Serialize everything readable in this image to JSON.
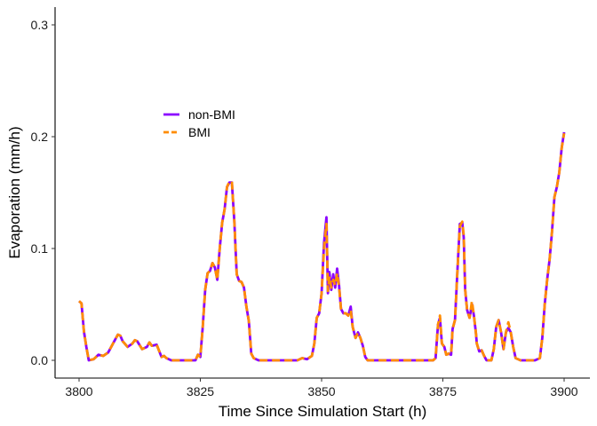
{
  "chart_data": {
    "type": "line",
    "title": "",
    "xlabel": "Time Since Simulation Start (h)",
    "ylabel": "Evaporation (mm/h)",
    "xlim": [
      3800,
      3900
    ],
    "ylim": [
      0,
      0.3
    ],
    "x_ticks": [
      3800,
      3825,
      3850,
      3875,
      3900
    ],
    "y_ticks": [
      0.0,
      0.1,
      0.2,
      0.3
    ],
    "x_tick_labels": [
      "3800",
      "3825",
      "3850",
      "3875",
      "3900"
    ],
    "y_tick_labels": [
      "0.0",
      "0.1",
      "0.2",
      "0.3"
    ],
    "grid": false,
    "legend_position": "upper-left",
    "series": [
      {
        "name": "non-BMI",
        "color": "#8B00FF",
        "dash": "solid",
        "points": [
          [
            3800,
            0.053
          ],
          [
            3800.5,
            0.051
          ],
          [
            3801,
            0.026
          ],
          [
            3801.5,
            0.012
          ],
          [
            3802,
            0.0
          ],
          [
            3803,
            0.001
          ],
          [
            3804,
            0.005
          ],
          [
            3805,
            0.004
          ],
          [
            3806,
            0.007
          ],
          [
            3807,
            0.015
          ],
          [
            3808,
            0.023
          ],
          [
            3808.5,
            0.022
          ],
          [
            3809,
            0.017
          ],
          [
            3810,
            0.012
          ],
          [
            3811,
            0.015
          ],
          [
            3811.5,
            0.018
          ],
          [
            3812,
            0.017
          ],
          [
            3813,
            0.01
          ],
          [
            3814,
            0.012
          ],
          [
            3814.5,
            0.016
          ],
          [
            3815,
            0.013
          ],
          [
            3816,
            0.014
          ],
          [
            3817,
            0.003
          ],
          [
            3817.5,
            0.004
          ],
          [
            3818,
            0.002
          ],
          [
            3819,
            0.0
          ],
          [
            3820,
            0.0
          ],
          [
            3821,
            0.0
          ],
          [
            3822,
            0.0
          ],
          [
            3823,
            0.0
          ],
          [
            3824,
            0.0
          ],
          [
            3824.5,
            0.005
          ],
          [
            3825,
            0.003
          ],
          [
            3825.5,
            0.03
          ],
          [
            3826,
            0.063
          ],
          [
            3826.5,
            0.078
          ],
          [
            3827,
            0.08
          ],
          [
            3827.5,
            0.087
          ],
          [
            3828,
            0.083
          ],
          [
            3828.5,
            0.072
          ],
          [
            3829,
            0.1
          ],
          [
            3829.5,
            0.123
          ],
          [
            3830,
            0.135
          ],
          [
            3830.5,
            0.155
          ],
          [
            3831,
            0.159
          ],
          [
            3831.5,
            0.159
          ],
          [
            3832,
            0.125
          ],
          [
            3832.5,
            0.077
          ],
          [
            3833,
            0.071
          ],
          [
            3833.5,
            0.07
          ],
          [
            3834,
            0.065
          ],
          [
            3834.5,
            0.048
          ],
          [
            3835,
            0.035
          ],
          [
            3835.5,
            0.006
          ],
          [
            3836,
            0.002
          ],
          [
            3837,
            0.0
          ],
          [
            3838,
            0.0
          ],
          [
            3839,
            0.0
          ],
          [
            3840,
            0.0
          ],
          [
            3841,
            0.0
          ],
          [
            3842,
            0.0
          ],
          [
            3843,
            0.0
          ],
          [
            3844,
            0.0
          ],
          [
            3845,
            0.0
          ],
          [
            3846,
            0.002
          ],
          [
            3847,
            0.001
          ],
          [
            3848,
            0.004
          ],
          [
            3848.5,
            0.015
          ],
          [
            3849,
            0.038
          ],
          [
            3849.5,
            0.042
          ],
          [
            3850,
            0.06
          ],
          [
            3850.5,
            0.105
          ],
          [
            3851,
            0.128
          ],
          [
            3851.3,
            0.06
          ],
          [
            3851.6,
            0.079
          ],
          [
            3852,
            0.063
          ],
          [
            3852.4,
            0.077
          ],
          [
            3852.8,
            0.065
          ],
          [
            3853.2,
            0.082
          ],
          [
            3853.6,
            0.067
          ],
          [
            3854,
            0.046
          ],
          [
            3854.5,
            0.042
          ],
          [
            3855,
            0.042
          ],
          [
            3855.5,
            0.04
          ],
          [
            3856,
            0.048
          ],
          [
            3856.4,
            0.03
          ],
          [
            3857,
            0.02
          ],
          [
            3857.5,
            0.025
          ],
          [
            3858,
            0.02
          ],
          [
            3858.5,
            0.013
          ],
          [
            3859,
            0.003
          ],
          [
            3859.5,
            0.0
          ],
          [
            3860,
            0.0
          ],
          [
            3862,
            0.0
          ],
          [
            3864,
            0.0
          ],
          [
            3866,
            0.0
          ],
          [
            3868,
            0.0
          ],
          [
            3870,
            0.0
          ],
          [
            3872,
            0.0
          ],
          [
            3873,
            0.0
          ],
          [
            3873.5,
            0.002
          ],
          [
            3874,
            0.032
          ],
          [
            3874.4,
            0.038
          ],
          [
            3874.8,
            0.015
          ],
          [
            3875.3,
            0.012
          ],
          [
            3875.7,
            0.005
          ],
          [
            3876.2,
            0.006
          ],
          [
            3876.7,
            0.005
          ],
          [
            3877,
            0.028
          ],
          [
            3877.5,
            0.036
          ],
          [
            3878,
            0.08
          ],
          [
            3878.5,
            0.122
          ],
          [
            3879,
            0.123
          ],
          [
            3879.3,
            0.11
          ],
          [
            3879.6,
            0.063
          ],
          [
            3880,
            0.045
          ],
          [
            3880.5,
            0.038
          ],
          [
            3881,
            0.05
          ],
          [
            3881.4,
            0.04
          ],
          [
            3881.8,
            0.025
          ],
          [
            3882,
            0.015
          ],
          [
            3882.5,
            0.008
          ],
          [
            3883,
            0.009
          ],
          [
            3883.5,
            0.004
          ],
          [
            3884,
            0.0
          ],
          [
            3885,
            0.0
          ],
          [
            3885.5,
            0.01
          ],
          [
            3886,
            0.03
          ],
          [
            3886.5,
            0.036
          ],
          [
            3887,
            0.025
          ],
          [
            3887.5,
            0.01
          ],
          [
            3888,
            0.025
          ],
          [
            3888.5,
            0.029
          ],
          [
            3889,
            0.025
          ],
          [
            3889.5,
            0.012
          ],
          [
            3890,
            0.002
          ],
          [
            3891,
            0.0
          ],
          [
            3892,
            0.0
          ],
          [
            3893,
            0.0
          ],
          [
            3894,
            0.0
          ],
          [
            3895,
            0.002
          ],
          [
            3895.5,
            0.02
          ],
          [
            3896,
            0.05
          ],
          [
            3896.5,
            0.072
          ],
          [
            3897,
            0.09
          ],
          [
            3897.5,
            0.115
          ],
          [
            3898,
            0.146
          ],
          [
            3898.5,
            0.155
          ],
          [
            3899,
            0.168
          ],
          [
            3899.5,
            0.19
          ],
          [
            3900,
            0.204
          ]
        ]
      },
      {
        "name": "BMI",
        "color": "#FF8C00",
        "dash": "dashed",
        "points": [
          [
            3800,
            0.053
          ],
          [
            3800.5,
            0.051
          ],
          [
            3801,
            0.026
          ],
          [
            3801.5,
            0.012
          ],
          [
            3802,
            0.0
          ],
          [
            3803,
            0.001
          ],
          [
            3804,
            0.005
          ],
          [
            3805,
            0.004
          ],
          [
            3806,
            0.007
          ],
          [
            3807,
            0.015
          ],
          [
            3808,
            0.023
          ],
          [
            3808.5,
            0.022
          ],
          [
            3809,
            0.017
          ],
          [
            3810,
            0.012
          ],
          [
            3811,
            0.015
          ],
          [
            3811.5,
            0.018
          ],
          [
            3812,
            0.017
          ],
          [
            3813,
            0.01
          ],
          [
            3814,
            0.012
          ],
          [
            3814.5,
            0.016
          ],
          [
            3815,
            0.013
          ],
          [
            3816,
            0.014
          ],
          [
            3817,
            0.003
          ],
          [
            3817.5,
            0.004
          ],
          [
            3818,
            0.002
          ],
          [
            3819,
            0.0
          ],
          [
            3820,
            0.0
          ],
          [
            3821,
            0.0
          ],
          [
            3822,
            0.0
          ],
          [
            3823,
            0.0
          ],
          [
            3824,
            0.0
          ],
          [
            3824.5,
            0.005
          ],
          [
            3825,
            0.003
          ],
          [
            3825.5,
            0.03
          ],
          [
            3826,
            0.063
          ],
          [
            3826.5,
            0.078
          ],
          [
            3827,
            0.08
          ],
          [
            3827.5,
            0.087
          ],
          [
            3828,
            0.083
          ],
          [
            3828.5,
            0.072
          ],
          [
            3829,
            0.1
          ],
          [
            3829.5,
            0.123
          ],
          [
            3830,
            0.135
          ],
          [
            3830.5,
            0.155
          ],
          [
            3831,
            0.16
          ],
          [
            3831.5,
            0.16
          ],
          [
            3832,
            0.125
          ],
          [
            3832.5,
            0.077
          ],
          [
            3833,
            0.071
          ],
          [
            3833.5,
            0.07
          ],
          [
            3834,
            0.065
          ],
          [
            3834.5,
            0.048
          ],
          [
            3835,
            0.035
          ],
          [
            3835.5,
            0.006
          ],
          [
            3836,
            0.002
          ],
          [
            3837,
            0.0
          ],
          [
            3838,
            0.0
          ],
          [
            3839,
            0.0
          ],
          [
            3840,
            0.0
          ],
          [
            3841,
            0.0
          ],
          [
            3842,
            0.0
          ],
          [
            3843,
            0.0
          ],
          [
            3844,
            0.0
          ],
          [
            3845,
            0.0
          ],
          [
            3846,
            0.002
          ],
          [
            3847,
            0.001
          ],
          [
            3848,
            0.004
          ],
          [
            3848.5,
            0.015
          ],
          [
            3849,
            0.038
          ],
          [
            3849.5,
            0.042
          ],
          [
            3850,
            0.06
          ],
          [
            3850.5,
            0.1
          ],
          [
            3851,
            0.122
          ],
          [
            3851.3,
            0.062
          ],
          [
            3851.6,
            0.075
          ],
          [
            3852,
            0.065
          ],
          [
            3852.4,
            0.072
          ],
          [
            3852.8,
            0.067
          ],
          [
            3853.2,
            0.078
          ],
          [
            3853.6,
            0.066
          ],
          [
            3854,
            0.046
          ],
          [
            3854.5,
            0.042
          ],
          [
            3855,
            0.042
          ],
          [
            3855.5,
            0.04
          ],
          [
            3856,
            0.045
          ],
          [
            3856.4,
            0.03
          ],
          [
            3857,
            0.02
          ],
          [
            3857.5,
            0.025
          ],
          [
            3858,
            0.02
          ],
          [
            3858.5,
            0.013
          ],
          [
            3859,
            0.003
          ],
          [
            3859.5,
            0.0
          ],
          [
            3860,
            0.0
          ],
          [
            3862,
            0.0
          ],
          [
            3864,
            0.0
          ],
          [
            3866,
            0.0
          ],
          [
            3868,
            0.0
          ],
          [
            3870,
            0.0
          ],
          [
            3872,
            0.0
          ],
          [
            3873,
            0.0
          ],
          [
            3873.5,
            0.002
          ],
          [
            3874,
            0.032
          ],
          [
            3874.4,
            0.04
          ],
          [
            3874.8,
            0.015
          ],
          [
            3875.3,
            0.012
          ],
          [
            3875.7,
            0.005
          ],
          [
            3876.2,
            0.006
          ],
          [
            3876.7,
            0.005
          ],
          [
            3877,
            0.028
          ],
          [
            3877.5,
            0.036
          ],
          [
            3878,
            0.08
          ],
          [
            3878.5,
            0.12
          ],
          [
            3879,
            0.124
          ],
          [
            3879.3,
            0.112
          ],
          [
            3879.6,
            0.063
          ],
          [
            3880,
            0.045
          ],
          [
            3880.5,
            0.038
          ],
          [
            3881,
            0.053
          ],
          [
            3881.4,
            0.04
          ],
          [
            3881.8,
            0.025
          ],
          [
            3882,
            0.015
          ],
          [
            3882.5,
            0.008
          ],
          [
            3883,
            0.009
          ],
          [
            3883.5,
            0.004
          ],
          [
            3884,
            0.0
          ],
          [
            3885,
            0.0
          ],
          [
            3885.5,
            0.01
          ],
          [
            3886,
            0.03
          ],
          [
            3886.5,
            0.036
          ],
          [
            3887,
            0.025
          ],
          [
            3887.5,
            0.01
          ],
          [
            3888,
            0.025
          ],
          [
            3888.5,
            0.034
          ],
          [
            3889,
            0.025
          ],
          [
            3889.5,
            0.012
          ],
          [
            3890,
            0.002
          ],
          [
            3891,
            0.0
          ],
          [
            3892,
            0.0
          ],
          [
            3893,
            0.0
          ],
          [
            3894,
            0.0
          ],
          [
            3895,
            0.002
          ],
          [
            3895.5,
            0.02
          ],
          [
            3896,
            0.05
          ],
          [
            3896.5,
            0.072
          ],
          [
            3897,
            0.09
          ],
          [
            3897.5,
            0.115
          ],
          [
            3898,
            0.146
          ],
          [
            3898.5,
            0.155
          ],
          [
            3899,
            0.168
          ],
          [
            3899.5,
            0.19
          ],
          [
            3900,
            0.203
          ]
        ]
      }
    ]
  }
}
